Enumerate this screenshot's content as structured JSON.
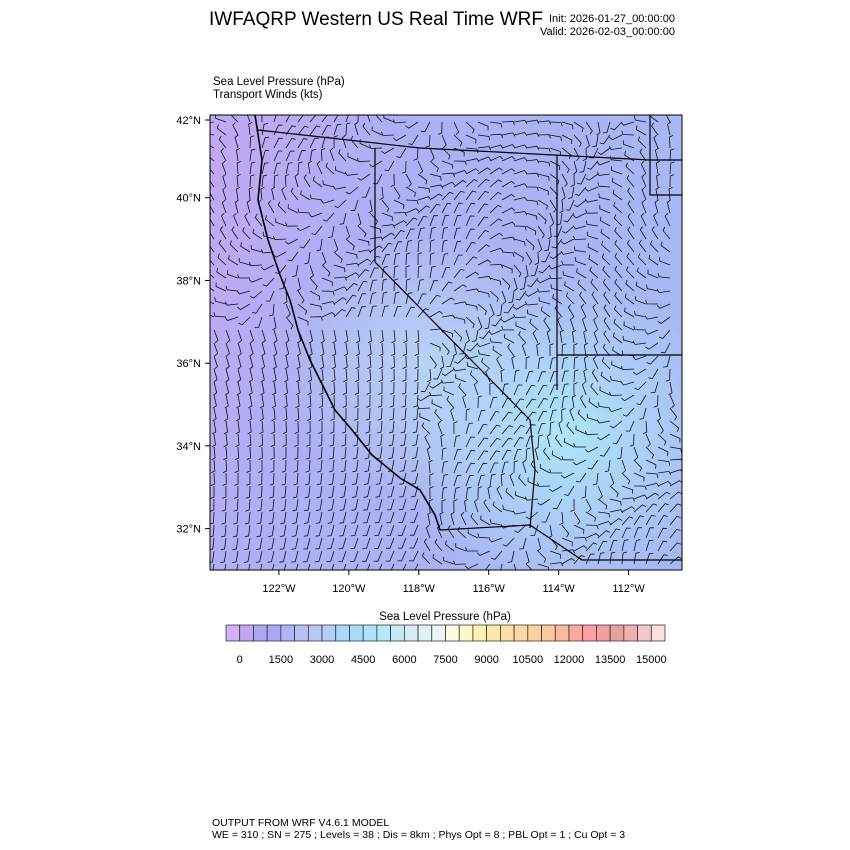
{
  "header": {
    "title": "IWFAQRP Western US Real Time WRF",
    "init": "Init: 2026-01-27_00:00:00",
    "valid": "Valid: 2026-02-03_00:00:00",
    "field1": "Sea Level Pressure   (hPa)",
    "field2": "Transport Winds   (kts)"
  },
  "chart_data": {
    "type": "heatmap",
    "title": "IWFAQRP Western US Real Time WRF",
    "map": {
      "lat_ticks": [
        "42°N",
        "40°N",
        "38°N",
        "36°N",
        "34°N",
        "32°N"
      ],
      "lon_ticks": [
        "122°W",
        "120°W",
        "118°W",
        "116°W",
        "114°W",
        "112°W"
      ],
      "lat_range": [
        31,
        42
      ],
      "lon_range": [
        -124,
        -110.5
      ],
      "overlay": "wind barbs"
    },
    "colorbar": {
      "title": "Sea Level Pressure  (hPa)",
      "labels": [
        "0",
        "1500",
        "3000",
        "4500",
        "6000",
        "7500",
        "9000",
        "10500",
        "12000",
        "13500",
        "15000"
      ],
      "min": -500,
      "max": 15500,
      "step": 500,
      "colors": [
        "#d4b0f5",
        "#c4a6f0",
        "#aca6f5",
        "#a8a8f5",
        "#adb5f5",
        "#b8c0f5",
        "#b8c8f5",
        "#b0d0fa",
        "#aad8fc",
        "#a8ddfa",
        "#a8e4fa",
        "#b4e8fa",
        "#c6e8f5",
        "#d4ecf5",
        "#e0f0f8",
        "#eaf4fa",
        "#fcfce0",
        "#fdf8cc",
        "#fdf2b5",
        "#fde8aa",
        "#fde0a5",
        "#fdd8a0",
        "#fdd0a0",
        "#fcc8a0",
        "#fcb8a0",
        "#fcaaa0",
        "#fca0a0",
        "#f4a0a0",
        "#e8a0a0",
        "#f0b0b0",
        "#f4c8c8",
        "#fce0e0"
      ]
    }
  },
  "footer": {
    "line1": "OUTPUT FROM WRF V4.6.1 MODEL",
    "line2": "WE = 310 ; SN = 275 ; Levels = 38 ; Dis = 8km ; Phys Opt = 8 ; PBL Opt = 1 ; Cu Opt = 3"
  }
}
